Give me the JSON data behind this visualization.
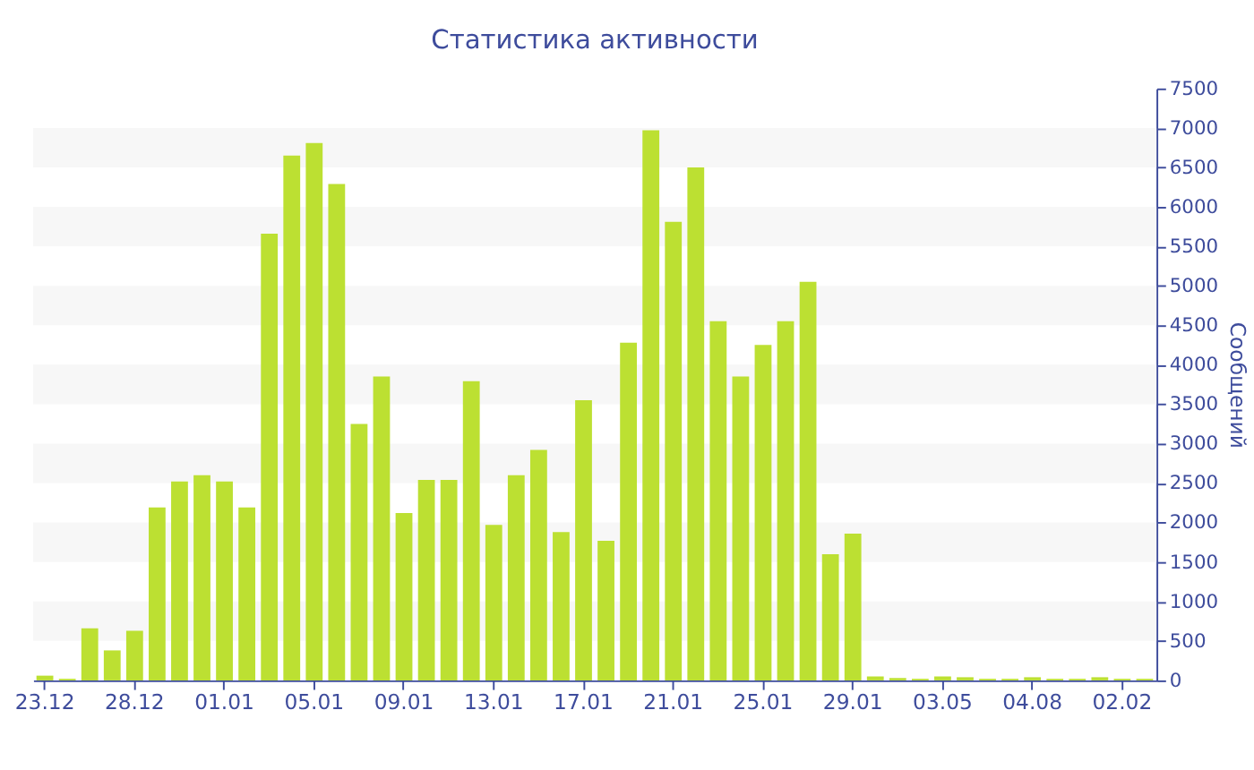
{
  "chart_data": {
    "type": "bar",
    "title": "Статистика активности",
    "ylabel": "Сообщений",
    "categories": [
      "23.12",
      null,
      null,
      null,
      "28.12",
      null,
      null,
      null,
      "01.01",
      null,
      null,
      null,
      "05.01",
      null,
      null,
      null,
      "09.01",
      null,
      null,
      null,
      "13.01",
      null,
      null,
      null,
      "17.01",
      null,
      null,
      null,
      "21.01",
      null,
      null,
      null,
      "25.01",
      null,
      null,
      null,
      "29.01",
      null,
      null,
      null,
      "03.05",
      null,
      null,
      null,
      "04.08",
      null,
      null,
      null,
      "02.02",
      null
    ],
    "values": [
      60,
      20,
      660,
      380,
      630,
      2190,
      2520,
      2600,
      2520,
      2190,
      5660,
      6650,
      6810,
      6290,
      3250,
      3850,
      2120,
      2540,
      2540,
      3790,
      1970,
      2600,
      2920,
      1880,
      3550,
      1770,
      4280,
      6970,
      5810,
      6500,
      4550,
      3850,
      4250,
      4550,
      5050,
      1600,
      1860,
      50,
      30,
      20,
      50,
      40,
      20,
      20,
      40,
      20,
      20,
      40,
      20,
      20
    ],
    "color": "#bce032",
    "ylim": [
      0,
      7500
    ],
    "yticks": [
      0,
      500,
      1000,
      1500,
      2000,
      2500,
      3000,
      3500,
      4000,
      4500,
      5000,
      5500,
      6000,
      6500,
      7000,
      7500
    ],
    "bands": [
      {
        "axis": "y",
        "from": 500,
        "to": 1000,
        "color": "#f7f7f7"
      },
      {
        "axis": "y",
        "from": 1500,
        "to": 2000,
        "color": "#f7f7f7"
      },
      {
        "axis": "y",
        "from": 2500,
        "to": 3000,
        "color": "#f7f7f7"
      },
      {
        "axis": "y",
        "from": 3500,
        "to": 4000,
        "color": "#f7f7f7"
      },
      {
        "axis": "y",
        "from": 4500,
        "to": 5000,
        "color": "#f7f7f7"
      },
      {
        "axis": "y",
        "from": 5500,
        "to": 6000,
        "color": "#f7f7f7"
      },
      {
        "axis": "y",
        "from": 6500,
        "to": 7000,
        "color": "#f7f7f7"
      }
    ]
  }
}
